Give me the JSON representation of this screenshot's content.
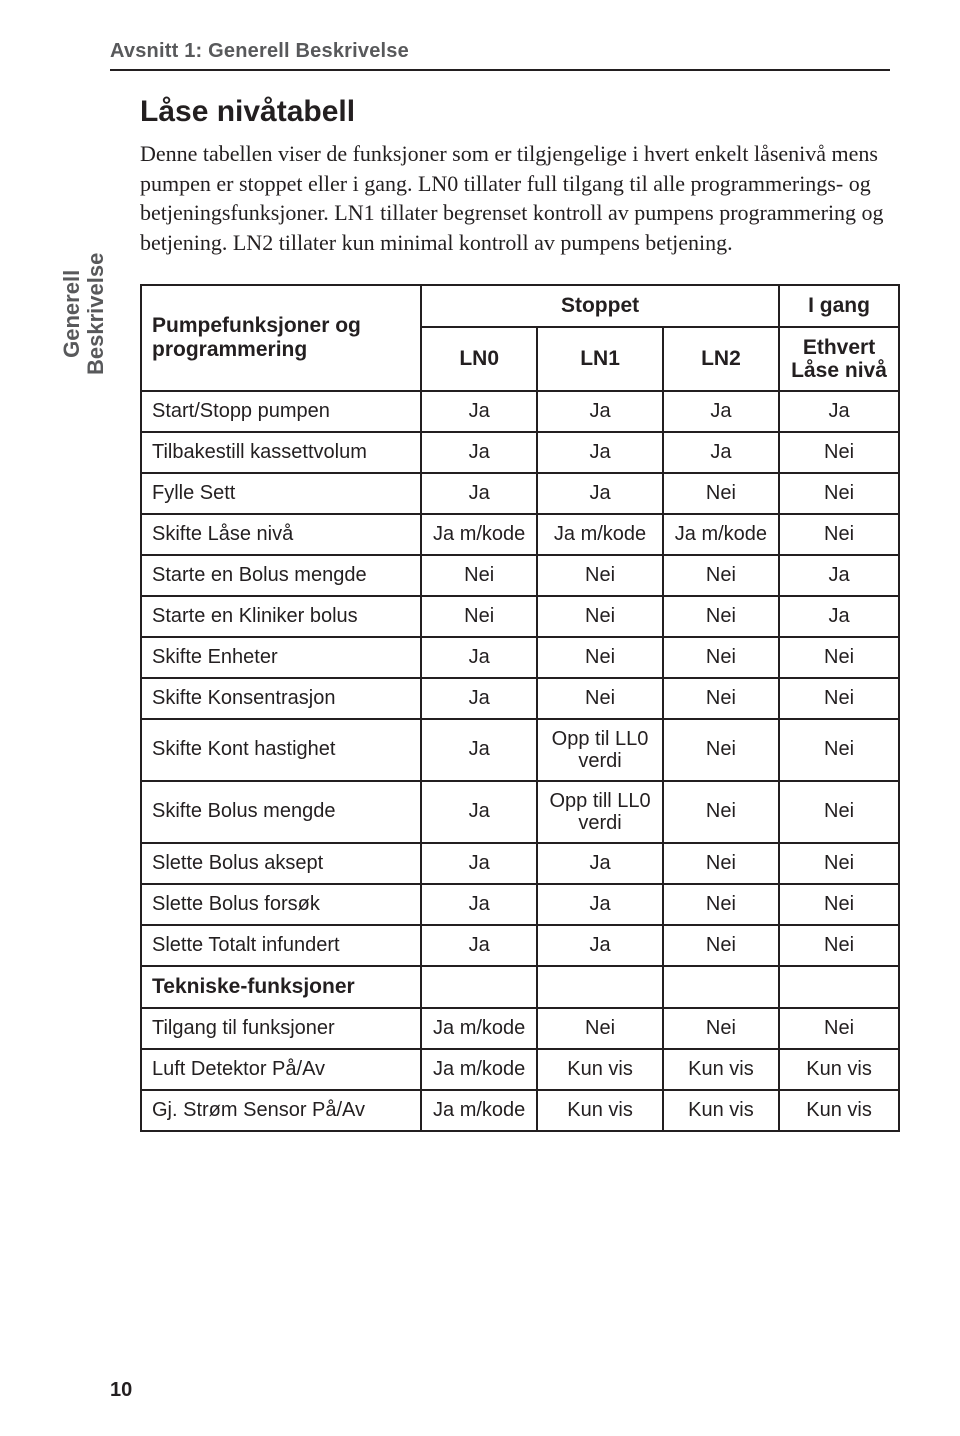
{
  "runningHead": "Avsnitt 1: Generell Beskrivelse",
  "sideTab": {
    "line1": "Generell",
    "line2": "Beskrivelse"
  },
  "heading": "Låse nivåtabell",
  "paragraph": "Denne tabellen viser de funksjoner som er tilgjengelige i hvert enkelt låsenivå mens pumpen er stoppet eller i gang. LN0 tillater full tilgang til alle programmerings- og betjeningsfunksjoner. LN1 tillater begrenset kontroll av pumpens programmering og betjening. LN2 tillater kun minimal kontroll av pumpens betjening.",
  "table": {
    "header": {
      "left": "Pumpefunksjoner og programmering",
      "stopped": "Stoppet",
      "running": "I gang",
      "ln0": "LN0",
      "ln1": "LN1",
      "ln2": "LN2",
      "anyLevelLine1": "Ethvert",
      "anyLevelLine2": "Låse nivå"
    },
    "rows": [
      {
        "label": "Start/Stopp pumpen",
        "c": [
          "Ja",
          "Ja",
          "Ja",
          "Ja"
        ]
      },
      {
        "label": "Tilbakestill kassettvolum",
        "c": [
          "Ja",
          "Ja",
          "Ja",
          "Nei"
        ]
      },
      {
        "label": "Fylle Sett",
        "c": [
          "Ja",
          "Ja",
          "Nei",
          "Nei"
        ]
      },
      {
        "label": "Skifte Låse nivå",
        "c": [
          "Ja m/kode",
          "Ja m/kode",
          "Ja m/kode",
          "Nei"
        ]
      },
      {
        "label": "Starte en Bolus mengde",
        "c": [
          "Nei",
          "Nei",
          "Nei",
          "Ja"
        ]
      },
      {
        "label": "Starte en Kliniker bolus",
        "c": [
          "Nei",
          "Nei",
          "Nei",
          "Ja"
        ]
      },
      {
        "label": "Skifte Enheter",
        "c": [
          "Ja",
          "Nei",
          "Nei",
          "Nei"
        ]
      },
      {
        "label": "Skifte Konsentrasjon",
        "c": [
          "Ja",
          "Nei",
          "Nei",
          "Nei"
        ]
      },
      {
        "label": "Skifte Kont hastighet",
        "c": [
          "Ja",
          "Opp til LL0\nverdi",
          "Nei",
          "Nei"
        ]
      },
      {
        "label": "Skifte Bolus mengde",
        "c": [
          "Ja",
          "Opp till LL0\nverdi",
          "Nei",
          "Nei"
        ]
      },
      {
        "label": "Slette Bolus aksept",
        "c": [
          "Ja",
          "Ja",
          "Nei",
          "Nei"
        ]
      },
      {
        "label": "Slette Bolus forsøk",
        "c": [
          "Ja",
          "Ja",
          "Nei",
          "Nei"
        ]
      },
      {
        "label": "Slette Totalt infundert",
        "c": [
          "Ja",
          "Ja",
          "Nei",
          "Nei"
        ]
      }
    ],
    "sectionLabel": "Tekniske-funksjoner",
    "techRows": [
      {
        "label": "Tilgang til funksjoner",
        "c": [
          "Ja m/kode",
          "Nei",
          "Nei",
          "Nei"
        ]
      },
      {
        "label": "Luft Detektor På/Av",
        "c": [
          "Ja m/kode",
          "Kun vis",
          "Kun vis",
          "Kun vis"
        ]
      },
      {
        "label": "Gj. Strøm Sensor På/Av",
        "c": [
          "Ja m/kode",
          "Kun vis",
          "Kun vis",
          "Kun vis"
        ]
      }
    ]
  },
  "pageNumber": "10"
}
